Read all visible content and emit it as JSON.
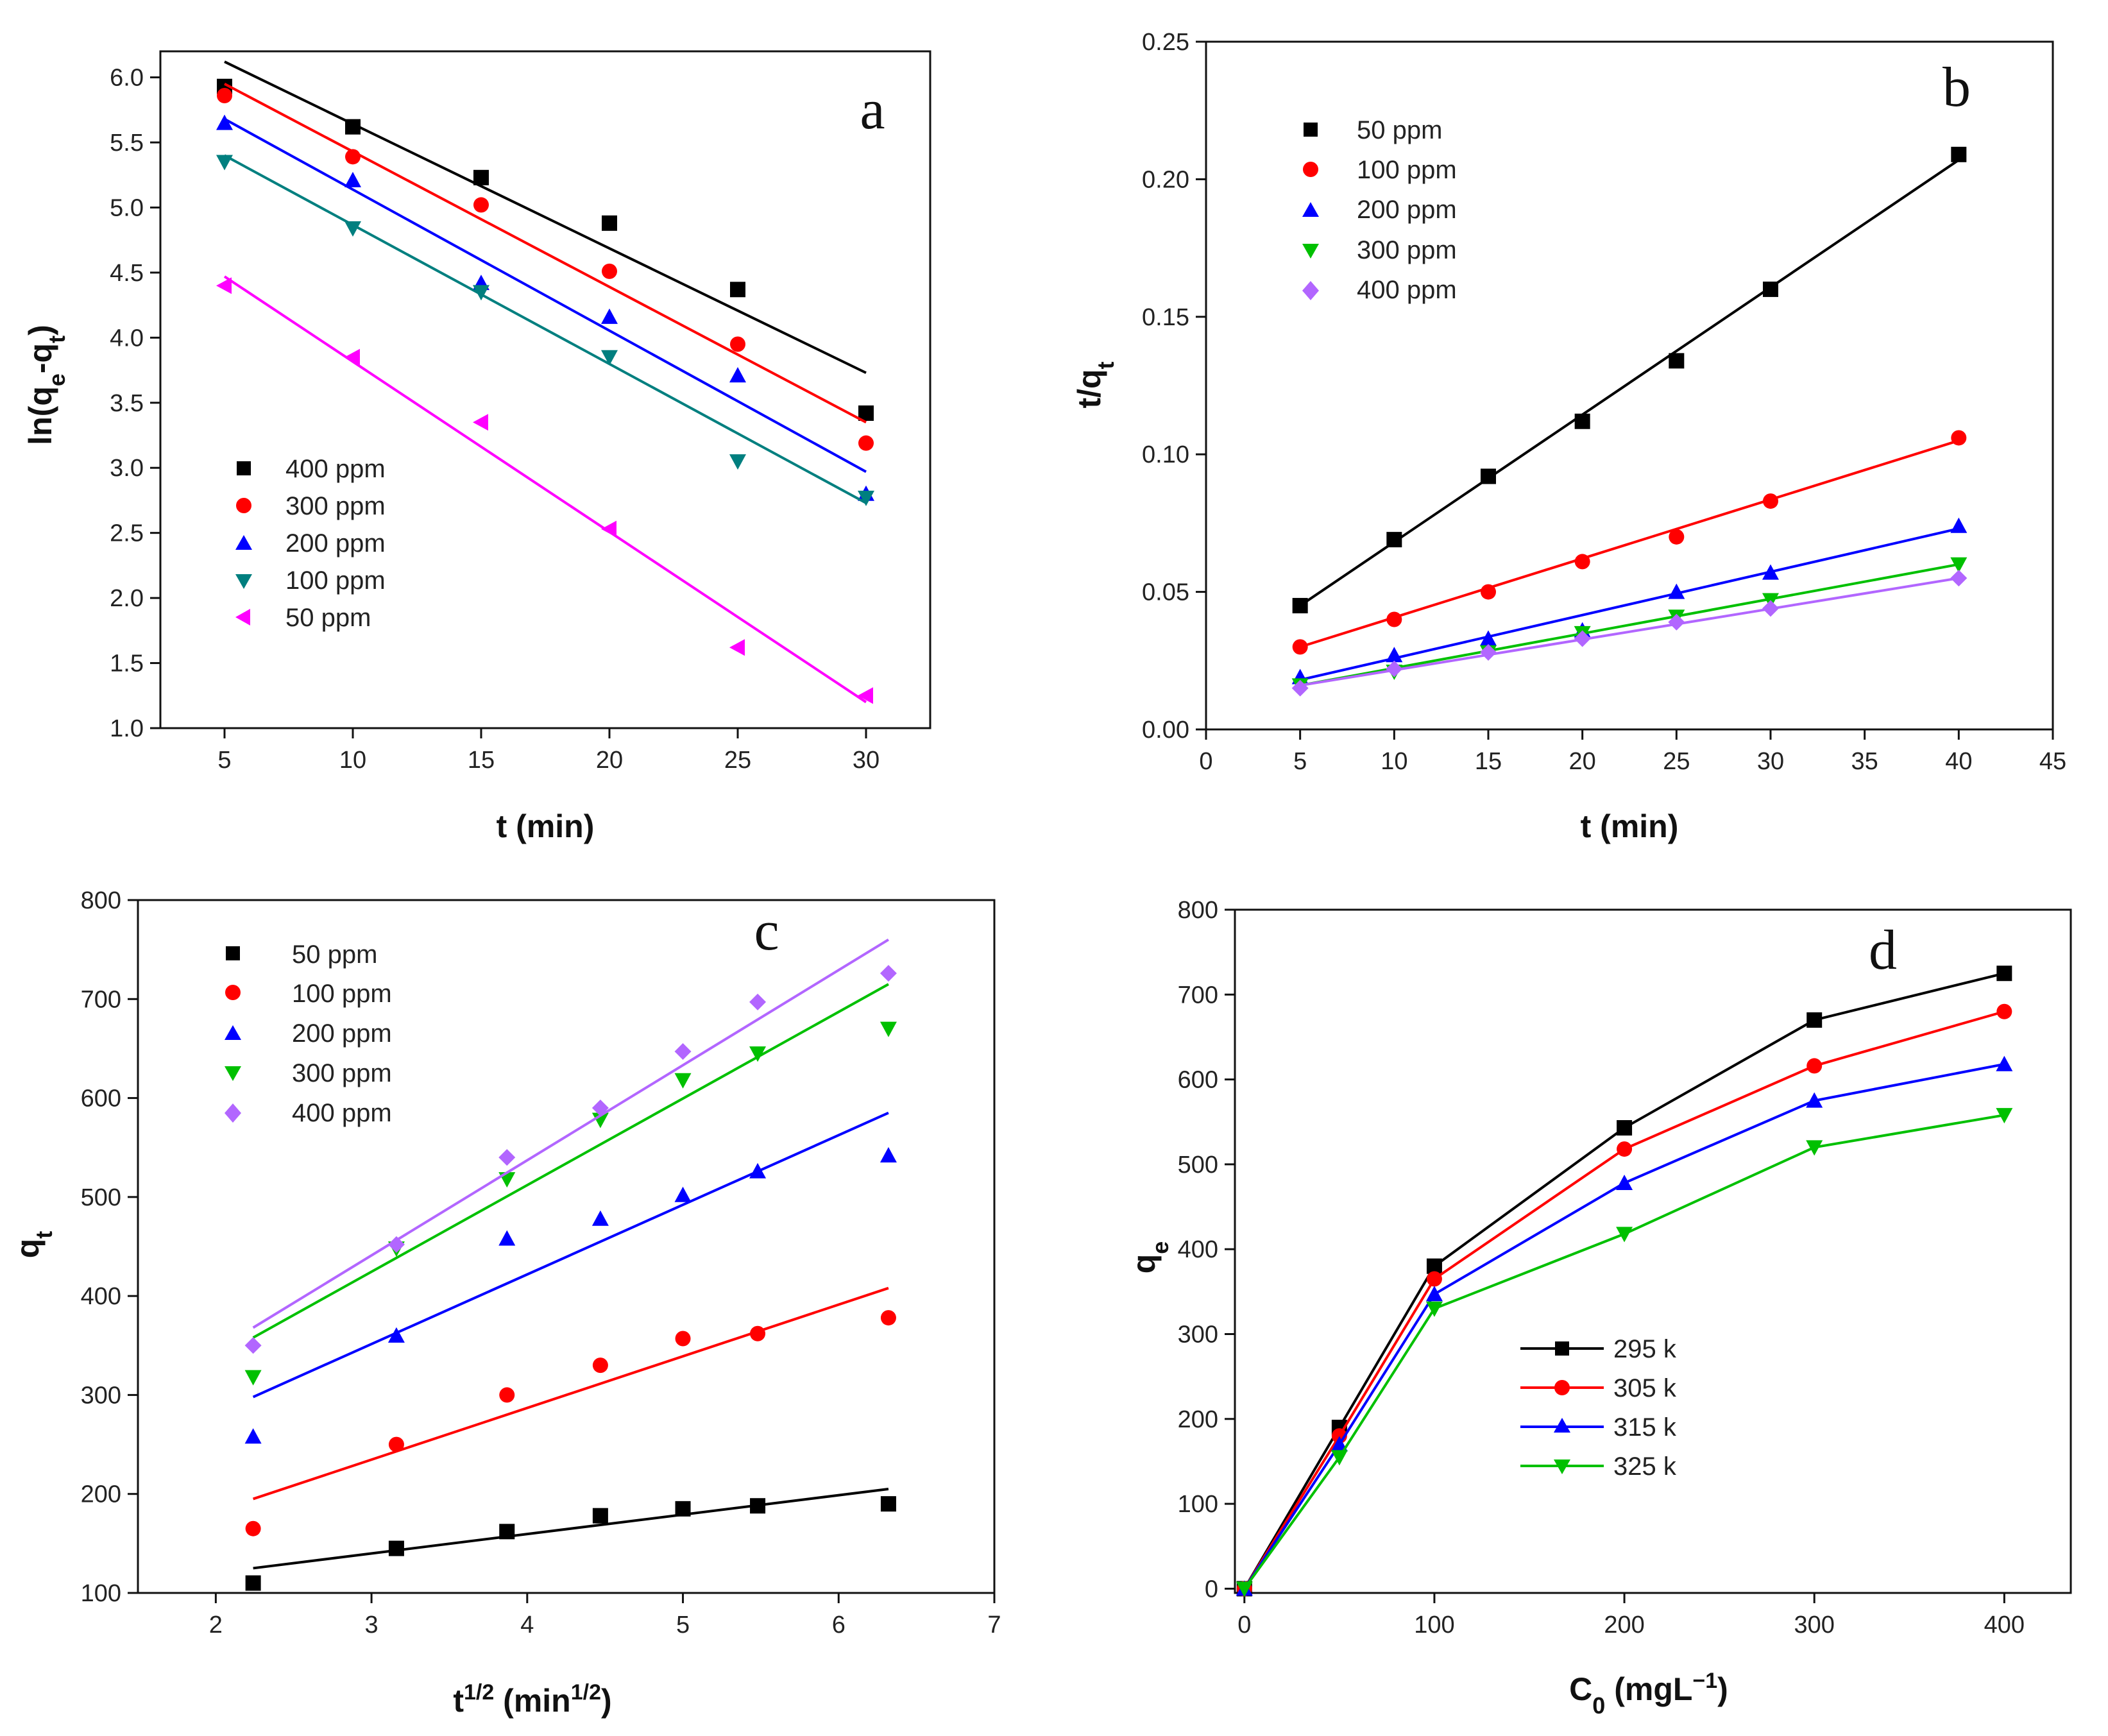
{
  "chart_data": [
    {
      "panel": "a",
      "type": "scatter",
      "fit": "linear",
      "xlabel": "t (min)",
      "ylabel": "ln(qe-qt)",
      "xlim": [
        2.5,
        32.5
      ],
      "ylim": [
        1.0,
        6.2
      ],
      "xticks": [
        5,
        10,
        15,
        20,
        25,
        30
      ],
      "yticks": [
        1.0,
        1.5,
        2.0,
        2.5,
        3.0,
        3.5,
        4.0,
        4.5,
        5.0,
        5.5,
        6.0
      ],
      "legend_position": "bottom-left",
      "series": [
        {
          "name": "400 ppm",
          "color": "#000000",
          "marker": "square",
          "x": [
            5,
            10,
            15,
            20,
            25,
            30
          ],
          "values": [
            5.93,
            5.62,
            5.23,
            4.88,
            4.37,
            3.42
          ],
          "line": [
            6.12,
            3.73
          ]
        },
        {
          "name": "300 ppm",
          "color": "#ff0000",
          "marker": "circle",
          "x": [
            5,
            10,
            15,
            20,
            25,
            30
          ],
          "values": [
            5.86,
            5.39,
            5.02,
            4.51,
            3.95,
            3.19
          ],
          "line": [
            5.95,
            3.35
          ]
        },
        {
          "name": "200 ppm",
          "color": "#0000ff",
          "marker": "triangle-up",
          "x": [
            5,
            10,
            15,
            20,
            25,
            30
          ],
          "values": [
            5.65,
            5.21,
            4.42,
            4.16,
            3.71,
            2.8
          ],
          "line": [
            5.68,
            2.97
          ]
        },
        {
          "name": "100 ppm",
          "color": "#007f7f",
          "marker": "triangle-down",
          "x": [
            5,
            10,
            15,
            20,
            25,
            30
          ],
          "values": [
            5.35,
            4.84,
            4.35,
            3.85,
            3.05,
            2.77
          ],
          "line": [
            5.4,
            2.73
          ]
        },
        {
          "name": "50 ppm",
          "color": "#ff00ff",
          "marker": "triangle-left",
          "x": [
            5,
            10,
            15,
            20,
            25,
            30
          ],
          "values": [
            4.4,
            3.85,
            3.35,
            2.53,
            1.62,
            1.25
          ],
          "line": [
            4.47,
            1.2
          ]
        }
      ]
    },
    {
      "panel": "b",
      "type": "scatter",
      "fit": "linear",
      "xlabel": "t (min)",
      "ylabel": "t/qt",
      "xlim": [
        0,
        45
      ],
      "ylim": [
        0,
        0.25
      ],
      "xticks": [
        0,
        5,
        10,
        15,
        20,
        25,
        30,
        35,
        40,
        45
      ],
      "yticks": [
        0.0,
        0.05,
        0.1,
        0.15,
        0.2,
        0.25
      ],
      "legend_position": "top-left",
      "series": [
        {
          "name": "50 ppm",
          "color": "#000000",
          "marker": "square",
          "x": [
            5,
            10,
            15,
            20,
            25,
            30,
            40
          ],
          "values": [
            0.045,
            0.069,
            0.092,
            0.112,
            0.134,
            0.16,
            0.209
          ],
          "line": [
            0.045,
            0.207
          ]
        },
        {
          "name": "100 ppm",
          "color": "#ff0000",
          "marker": "circle",
          "x": [
            5,
            10,
            15,
            20,
            25,
            30,
            40
          ],
          "values": [
            0.03,
            0.04,
            0.05,
            0.061,
            0.07,
            0.083,
            0.106
          ],
          "line": [
            0.03,
            0.105
          ]
        },
        {
          "name": "200 ppm",
          "color": "#0000ff",
          "marker": "triangle-up",
          "x": [
            5,
            10,
            15,
            20,
            25,
            30,
            40
          ],
          "values": [
            0.019,
            0.027,
            0.033,
            0.036,
            0.05,
            0.057,
            0.074
          ],
          "line": [
            0.018,
            0.073
          ]
        },
        {
          "name": "300 ppm",
          "color": "#00c000",
          "marker": "triangle-down",
          "x": [
            5,
            10,
            15,
            20,
            25,
            30,
            40
          ],
          "values": [
            0.016,
            0.021,
            0.028,
            0.035,
            0.041,
            0.047,
            0.06
          ],
          "line": [
            0.016,
            0.06
          ]
        },
        {
          "name": "400 ppm",
          "color": "#b266ff",
          "marker": "diamond",
          "x": [
            5,
            10,
            15,
            20,
            25,
            30,
            40
          ],
          "values": [
            0.015,
            0.022,
            0.028,
            0.033,
            0.039,
            0.044,
            0.055
          ],
          "line": [
            0.016,
            0.055
          ]
        }
      ]
    },
    {
      "panel": "c",
      "type": "scatter",
      "fit": "linear",
      "xlabel": "t1/2 (min1/2)",
      "ylabel": "qt",
      "xlim": [
        1.5,
        7
      ],
      "ylim": [
        100,
        800
      ],
      "xticks": [
        2,
        3,
        4,
        5,
        6,
        7
      ],
      "yticks": [
        100,
        200,
        300,
        400,
        500,
        600,
        700,
        800
      ],
      "legend_position": "top-left",
      "series": [
        {
          "name": "50 ppm",
          "color": "#000000",
          "marker": "square",
          "x": [
            2.24,
            3.16,
            3.87,
            4.47,
            5.0,
            5.48,
            6.32
          ],
          "values": [
            110,
            145,
            162,
            178,
            185,
            188,
            190
          ],
          "line": [
            125,
            205
          ]
        },
        {
          "name": "100 ppm",
          "color": "#ff0000",
          "marker": "circle",
          "x": [
            2.24,
            3.16,
            3.87,
            4.47,
            5.0,
            5.48,
            6.32
          ],
          "values": [
            165,
            250,
            300,
            330,
            357,
            362,
            378
          ],
          "line": [
            195,
            408
          ]
        },
        {
          "name": "200 ppm",
          "color": "#0000ff",
          "marker": "triangle-up",
          "x": [
            2.24,
            3.16,
            3.87,
            4.47,
            5.0,
            5.48,
            6.32
          ],
          "values": [
            258,
            360,
            458,
            478,
            502,
            526,
            542
          ],
          "line": [
            298,
            585
          ]
        },
        {
          "name": "300 ppm",
          "color": "#00c000",
          "marker": "triangle-down",
          "x": [
            2.24,
            3.16,
            3.87,
            4.47,
            5.0,
            5.48,
            6.32
          ],
          "values": [
            318,
            448,
            518,
            578,
            618,
            645,
            670
          ],
          "line": [
            358,
            715
          ]
        },
        {
          "name": "400 ppm",
          "color": "#b266ff",
          "marker": "diamond",
          "x": [
            2.24,
            3.16,
            3.87,
            4.47,
            5.0,
            5.48,
            6.32
          ],
          "values": [
            350,
            452,
            540,
            590,
            647,
            697,
            726
          ],
          "line": [
            368,
            760
          ]
        }
      ]
    },
    {
      "panel": "d",
      "type": "line",
      "xlabel": "C0 (mgL-1)",
      "ylabel": "qe",
      "xlim": [
        -5,
        435
      ],
      "ylim": [
        -5,
        800
      ],
      "xticks": [
        0,
        100,
        200,
        300,
        400
      ],
      "yticks": [
        0,
        100,
        200,
        300,
        400,
        500,
        600,
        700,
        800
      ],
      "legend_position": "center",
      "series": [
        {
          "name": "295 k",
          "color": "#000000",
          "marker": "square",
          "x": [
            0,
            50,
            100,
            200,
            300,
            400
          ],
          "values": [
            0,
            190,
            380,
            543,
            670,
            725
          ]
        },
        {
          "name": "305 k",
          "color": "#ff0000",
          "marker": "circle",
          "x": [
            0,
            50,
            100,
            200,
            300,
            400
          ],
          "values": [
            0,
            180,
            365,
            518,
            616,
            680
          ]
        },
        {
          "name": "315 k",
          "color": "#0000ff",
          "marker": "triangle-up",
          "x": [
            0,
            50,
            100,
            200,
            300,
            400
          ],
          "values": [
            0,
            170,
            347,
            478,
            575,
            618
          ]
        },
        {
          "name": "325 k",
          "color": "#00c000",
          "marker": "triangle-down",
          "x": [
            0,
            50,
            100,
            200,
            300,
            400
          ],
          "values": [
            0,
            155,
            330,
            418,
            520,
            558
          ]
        }
      ]
    }
  ]
}
